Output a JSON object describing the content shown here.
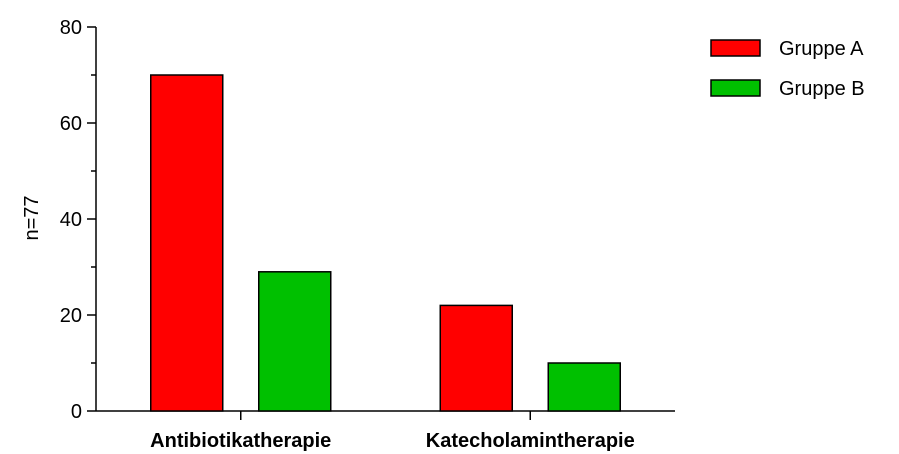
{
  "chart_data": {
    "type": "bar",
    "title": "",
    "xlabel": "",
    "ylabel": "n=77",
    "categories": [
      "Antibiotikatherapie",
      "Katecholamintherapie"
    ],
    "series": [
      {
        "name": "Gruppe A",
        "color": "#ff0000",
        "values": [
          70,
          22
        ]
      },
      {
        "name": "Gruppe B",
        "color": "#00c000",
        "values": [
          29,
          10
        ]
      }
    ],
    "ylim": [
      0,
      80
    ],
    "yticks": [
      0,
      20,
      40,
      60,
      80
    ],
    "grid": false,
    "legend_position": "top-right"
  }
}
